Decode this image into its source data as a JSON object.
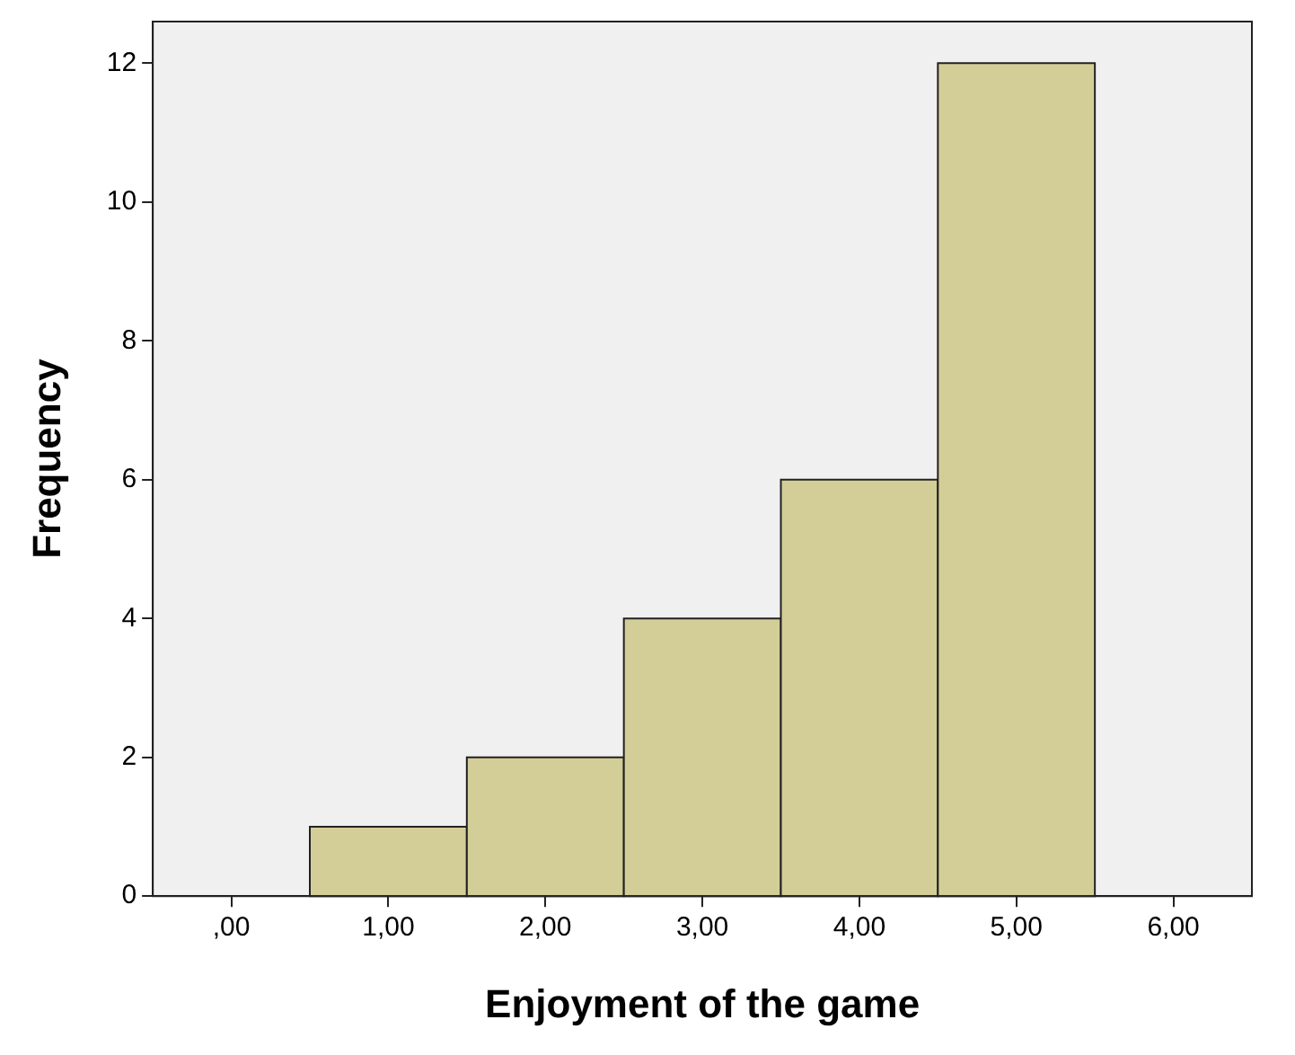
{
  "chart_data": {
    "type": "histogram",
    "xlabel": "Enjoyment of the game",
    "ylabel": "Frequency",
    "bins": [
      0.5,
      1.5,
      2.5,
      3.5,
      4.5,
      5.5
    ],
    "values": [
      1,
      2,
      4,
      6,
      12
    ],
    "color": "#d3ce97",
    "xlim": [
      -0.5,
      6.5
    ],
    "xticks": [
      {
        "value": 0,
        "label": ",00"
      },
      {
        "value": 1,
        "label": "1,00"
      },
      {
        "value": 2,
        "label": "2,00"
      },
      {
        "value": 3,
        "label": "3,00"
      },
      {
        "value": 4,
        "label": "4,00"
      },
      {
        "value": 5,
        "label": "5,00"
      },
      {
        "value": 6,
        "label": "6,00"
      }
    ],
    "ylim": [
      0,
      12.6
    ],
    "yticks": [
      0,
      2,
      4,
      6,
      8,
      10,
      12
    ],
    "grid": false,
    "legend": false
  }
}
